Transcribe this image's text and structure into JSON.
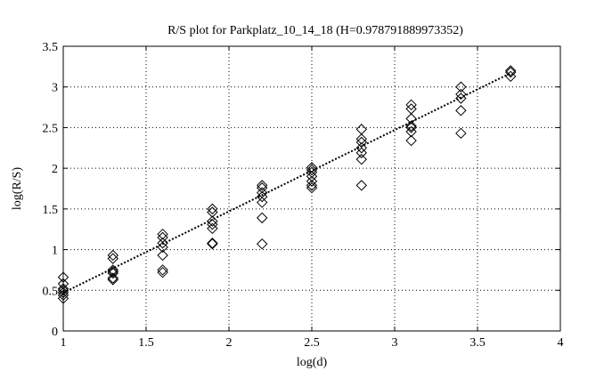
{
  "chart_data": {
    "type": "scatter",
    "title": "R/S plot for Parkplatz_10_14_18 (H=0.978791889973352)",
    "xlabel": "log(d)",
    "ylabel": "log(R/S)",
    "xlim": [
      1,
      4
    ],
    "ylim": [
      0,
      3.5
    ],
    "xticks": [
      1,
      1.5,
      2,
      2.5,
      3,
      3.5,
      4
    ],
    "yticks": [
      0,
      0.5,
      1,
      1.5,
      2,
      2.5,
      3,
      3.5
    ],
    "xtick_labels": [
      "1",
      "1.5",
      "2",
      "2.5",
      "3",
      "3.5",
      "4"
    ],
    "ytick_labels": [
      "0",
      "0.5",
      "1",
      "1.5",
      "2",
      "2.5",
      "3",
      "3.5"
    ],
    "grid": true,
    "marker": "diamond",
    "fit_line": {
      "style": "dotted",
      "x": [
        1.0,
        3.7
      ],
      "y": [
        0.47,
        3.17
      ]
    },
    "points": [
      [
        1.0,
        0.66
      ],
      [
        1.0,
        0.58
      ],
      [
        1.0,
        0.52
      ],
      [
        1.0,
        0.5
      ],
      [
        1.0,
        0.47
      ],
      [
        1.0,
        0.44
      ],
      [
        1.0,
        0.4
      ],
      [
        1.3,
        0.93
      ],
      [
        1.3,
        0.89
      ],
      [
        1.3,
        0.75
      ],
      [
        1.3,
        0.73
      ],
      [
        1.3,
        0.71
      ],
      [
        1.3,
        0.65
      ],
      [
        1.3,
        0.63
      ],
      [
        1.6,
        1.19
      ],
      [
        1.6,
        1.15
      ],
      [
        1.6,
        1.08
      ],
      [
        1.6,
        1.03
      ],
      [
        1.6,
        0.93
      ],
      [
        1.6,
        0.75
      ],
      [
        1.6,
        0.72
      ],
      [
        1.9,
        1.5
      ],
      [
        1.9,
        1.46
      ],
      [
        1.9,
        1.35
      ],
      [
        1.9,
        1.31
      ],
      [
        1.9,
        1.26
      ],
      [
        1.9,
        1.08
      ],
      [
        1.9,
        1.07
      ],
      [
        2.2,
        1.79
      ],
      [
        2.2,
        1.76
      ],
      [
        2.2,
        1.7
      ],
      [
        2.2,
        1.65
      ],
      [
        2.2,
        1.58
      ],
      [
        2.2,
        1.39
      ],
      [
        2.2,
        1.07
      ],
      [
        2.5,
        2.01
      ],
      [
        2.5,
        1.98
      ],
      [
        2.5,
        1.95
      ],
      [
        2.5,
        1.9
      ],
      [
        2.5,
        1.84
      ],
      [
        2.5,
        1.79
      ],
      [
        2.5,
        1.76
      ],
      [
        2.8,
        2.48
      ],
      [
        2.8,
        2.36
      ],
      [
        2.8,
        2.32
      ],
      [
        2.8,
        2.25
      ],
      [
        2.8,
        2.19
      ],
      [
        2.8,
        2.11
      ],
      [
        2.8,
        1.79
      ],
      [
        3.1,
        2.78
      ],
      [
        3.1,
        2.73
      ],
      [
        3.1,
        2.61
      ],
      [
        3.1,
        2.52
      ],
      [
        3.1,
        2.5
      ],
      [
        3.1,
        2.45
      ],
      [
        3.1,
        2.34
      ],
      [
        3.4,
        3.0
      ],
      [
        3.4,
        2.91
      ],
      [
        3.4,
        2.86
      ],
      [
        3.4,
        2.71
      ],
      [
        3.4,
        2.43
      ],
      [
        3.7,
        3.2
      ],
      [
        3.7,
        3.18
      ],
      [
        3.7,
        3.13
      ]
    ]
  }
}
